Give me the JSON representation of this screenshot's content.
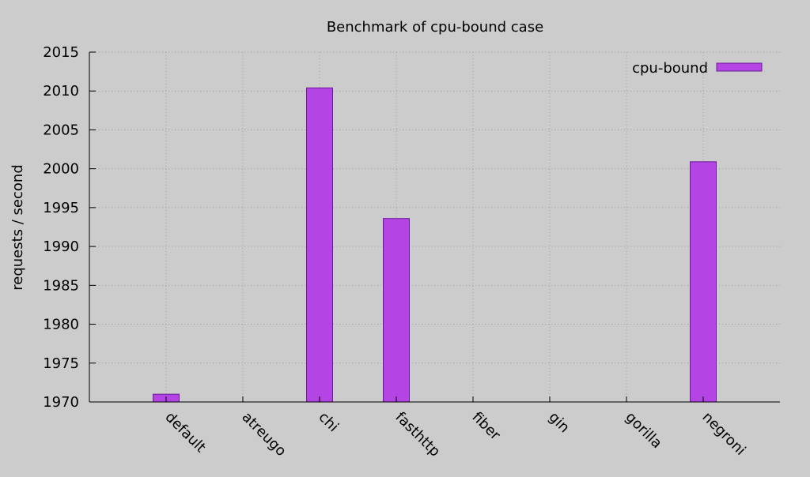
{
  "chart_data": {
    "type": "bar",
    "title": "Benchmark of cpu-bound case",
    "xlabel": "",
    "ylabel": "requests / second",
    "categories": [
      "default",
      "atreugo",
      "chi",
      "fasthttp",
      "fiber",
      "gin",
      "gorilla",
      "negroni"
    ],
    "series": [
      {
        "name": "cpu-bound",
        "color": "#b444e4",
        "values": [
          1971,
          1970,
          2010.4,
          1993.6,
          1970,
          1970,
          1970,
          2000.9
        ]
      }
    ],
    "ylim": [
      1970,
      2015
    ],
    "yticks": [
      "1970",
      "1975",
      "1980",
      "1985",
      "1990",
      "1995",
      "2000",
      "2005",
      "2010",
      "2015"
    ],
    "grid": true,
    "legend_position": "top-right",
    "background_color": "#cccccc"
  }
}
